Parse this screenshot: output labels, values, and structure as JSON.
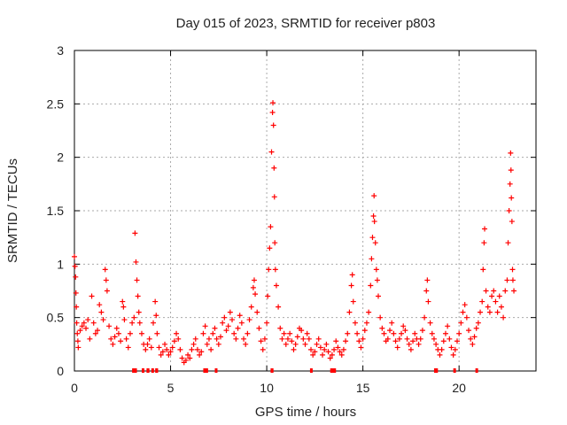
{
  "chart_data": {
    "type": "scatter",
    "title": "Day 015 of 2023, SRMTID for receiver p803",
    "xlabel": "GPS time / hours",
    "ylabel": "SRMTID / TECUs",
    "xlim": [
      0,
      24
    ],
    "ylim": [
      0,
      3
    ],
    "xticks": [
      0,
      5,
      10,
      15,
      20
    ],
    "yticks": [
      0,
      0.5,
      1,
      1.5,
      2,
      2.5,
      3
    ],
    "xtick_labels": [
      "0",
      "5",
      "10",
      "15",
      "20"
    ],
    "ytick_labels": [
      "0",
      "0.5",
      "1",
      "1.5",
      "2",
      "2.5",
      "3"
    ],
    "grid": true,
    "marker": "+",
    "color": "#ff0000",
    "series": [
      {
        "name": "SRMTID",
        "points": [
          [
            0.0,
            1.07
          ],
          [
            0.03,
            0.98
          ],
          [
            0.06,
            0.88
          ],
          [
            0.08,
            0.73
          ],
          [
            0.1,
            0.6
          ],
          [
            0.12,
            0.45
          ],
          [
            0.15,
            0.35
          ],
          [
            0.18,
            0.28
          ],
          [
            0.2,
            0.22
          ],
          [
            0.3,
            0.38
          ],
          [
            0.4,
            0.42
          ],
          [
            0.5,
            0.45
          ],
          [
            0.6,
            0.4
          ],
          [
            0.7,
            0.48
          ],
          [
            0.8,
            0.3
          ],
          [
            0.9,
            0.7
          ],
          [
            1.0,
            0.45
          ],
          [
            1.1,
            0.35
          ],
          [
            1.2,
            0.38
          ],
          [
            1.3,
            0.62
          ],
          [
            1.4,
            0.55
          ],
          [
            1.5,
            0.48
          ],
          [
            1.6,
            0.95
          ],
          [
            1.65,
            0.85
          ],
          [
            1.7,
            0.75
          ],
          [
            1.8,
            0.42
          ],
          [
            1.9,
            0.3
          ],
          [
            2.0,
            0.25
          ],
          [
            2.1,
            0.32
          ],
          [
            2.2,
            0.4
          ],
          [
            2.3,
            0.35
          ],
          [
            2.4,
            0.28
          ],
          [
            2.5,
            0.65
          ],
          [
            2.55,
            0.6
          ],
          [
            2.6,
            0.48
          ],
          [
            2.7,
            0.3
          ],
          [
            2.8,
            0.22
          ],
          [
            2.9,
            0.35
          ],
          [
            3.0,
            0.45
          ],
          [
            3.1,
            0.5
          ],
          [
            3.15,
            1.29
          ],
          [
            3.2,
            1.02
          ],
          [
            3.25,
            0.85
          ],
          [
            3.3,
            0.7
          ],
          [
            3.35,
            0.55
          ],
          [
            3.4,
            0.45
          ],
          [
            3.5,
            0.35
          ],
          [
            3.6,
            0.25
          ],
          [
            3.7,
            0.2
          ],
          [
            3.8,
            0.25
          ],
          [
            3.9,
            0.3
          ],
          [
            4.0,
            0.22
          ],
          [
            4.1,
            0.45
          ],
          [
            4.2,
            0.65
          ],
          [
            4.25,
            0.52
          ],
          [
            4.3,
            0.35
          ],
          [
            4.4,
            0.22
          ],
          [
            4.5,
            0.15
          ],
          [
            4.6,
            0.18
          ],
          [
            4.7,
            0.25
          ],
          [
            4.8,
            0.2
          ],
          [
            4.9,
            0.15
          ],
          [
            5.0,
            0.18
          ],
          [
            5.1,
            0.22
          ],
          [
            5.2,
            0.28
          ],
          [
            5.3,
            0.35
          ],
          [
            5.4,
            0.3
          ],
          [
            5.5,
            0.2
          ],
          [
            5.6,
            0.12
          ],
          [
            5.7,
            0.08
          ],
          [
            5.8,
            0.1
          ],
          [
            5.9,
            0.15
          ],
          [
            6.0,
            0.12
          ],
          [
            6.1,
            0.2
          ],
          [
            6.2,
            0.25
          ],
          [
            6.3,
            0.3
          ],
          [
            6.4,
            0.2
          ],
          [
            6.5,
            0.15
          ],
          [
            6.6,
            0.18
          ],
          [
            6.7,
            0.35
          ],
          [
            6.8,
            0.42
          ],
          [
            6.9,
            0.25
          ],
          [
            7.0,
            0.3
          ],
          [
            7.1,
            0.2
          ],
          [
            7.2,
            0.35
          ],
          [
            7.3,
            0.4
          ],
          [
            7.4,
            0.3
          ],
          [
            7.5,
            0.25
          ],
          [
            7.6,
            0.32
          ],
          [
            7.7,
            0.45
          ],
          [
            7.8,
            0.5
          ],
          [
            7.9,
            0.38
          ],
          [
            8.0,
            0.42
          ],
          [
            8.1,
            0.55
          ],
          [
            8.2,
            0.48
          ],
          [
            8.3,
            0.35
          ],
          [
            8.4,
            0.3
          ],
          [
            8.5,
            0.4
          ],
          [
            8.6,
            0.52
          ],
          [
            8.7,
            0.45
          ],
          [
            8.8,
            0.3
          ],
          [
            8.9,
            0.25
          ],
          [
            9.0,
            0.35
          ],
          [
            9.1,
            0.48
          ],
          [
            9.2,
            0.6
          ],
          [
            9.3,
            0.78
          ],
          [
            9.35,
            0.85
          ],
          [
            9.4,
            0.72
          ],
          [
            9.5,
            0.55
          ],
          [
            9.6,
            0.4
          ],
          [
            9.7,
            0.28
          ],
          [
            9.8,
            0.2
          ],
          [
            9.9,
            0.3
          ],
          [
            10.0,
            0.45
          ],
          [
            10.05,
            0.7
          ],
          [
            10.1,
            0.95
          ],
          [
            10.15,
            1.15
          ],
          [
            10.2,
            1.35
          ],
          [
            10.25,
            2.05
          ],
          [
            10.3,
            2.42
          ],
          [
            10.32,
            2.51
          ],
          [
            10.35,
            2.3
          ],
          [
            10.38,
            1.9
          ],
          [
            10.4,
            1.63
          ],
          [
            10.42,
            1.2
          ],
          [
            10.45,
            0.95
          ],
          [
            10.5,
            0.8
          ],
          [
            10.6,
            0.6
          ],
          [
            10.7,
            0.4
          ],
          [
            10.8,
            0.3
          ],
          [
            10.9,
            0.35
          ],
          [
            11.0,
            0.25
          ],
          [
            11.1,
            0.3
          ],
          [
            11.2,
            0.35
          ],
          [
            11.3,
            0.28
          ],
          [
            11.4,
            0.2
          ],
          [
            11.5,
            0.25
          ],
          [
            11.6,
            0.32
          ],
          [
            11.7,
            0.4
          ],
          [
            11.8,
            0.38
          ],
          [
            11.9,
            0.3
          ],
          [
            12.0,
            0.25
          ],
          [
            12.1,
            0.35
          ],
          [
            12.2,
            0.3
          ],
          [
            12.3,
            0.2
          ],
          [
            12.4,
            0.15
          ],
          [
            12.5,
            0.18
          ],
          [
            12.6,
            0.25
          ],
          [
            12.7,
            0.3
          ],
          [
            12.8,
            0.22
          ],
          [
            12.9,
            0.15
          ],
          [
            13.0,
            0.2
          ],
          [
            13.1,
            0.25
          ],
          [
            13.2,
            0.18
          ],
          [
            13.3,
            0.12
          ],
          [
            13.4,
            0.15
          ],
          [
            13.5,
            0.2
          ],
          [
            13.6,
            0.28
          ],
          [
            13.7,
            0.22
          ],
          [
            13.8,
            0.18
          ],
          [
            13.9,
            0.15
          ],
          [
            14.0,
            0.2
          ],
          [
            14.1,
            0.28
          ],
          [
            14.2,
            0.35
          ],
          [
            14.3,
            0.55
          ],
          [
            14.4,
            0.8
          ],
          [
            14.45,
            0.9
          ],
          [
            14.5,
            0.65
          ],
          [
            14.6,
            0.45
          ],
          [
            14.7,
            0.35
          ],
          [
            14.8,
            0.28
          ],
          [
            14.9,
            0.22
          ],
          [
            15.0,
            0.3
          ],
          [
            15.1,
            0.38
          ],
          [
            15.2,
            0.45
          ],
          [
            15.3,
            0.55
          ],
          [
            15.4,
            0.8
          ],
          [
            15.45,
            1.05
          ],
          [
            15.5,
            1.25
          ],
          [
            15.55,
            1.45
          ],
          [
            15.58,
            1.64
          ],
          [
            15.6,
            1.4
          ],
          [
            15.65,
            1.2
          ],
          [
            15.7,
            0.95
          ],
          [
            15.75,
            0.85
          ],
          [
            15.8,
            0.7
          ],
          [
            15.9,
            0.5
          ],
          [
            16.0,
            0.4
          ],
          [
            16.1,
            0.35
          ],
          [
            16.2,
            0.28
          ],
          [
            16.3,
            0.3
          ],
          [
            16.4,
            0.38
          ],
          [
            16.5,
            0.45
          ],
          [
            16.6,
            0.35
          ],
          [
            16.7,
            0.28
          ],
          [
            16.8,
            0.22
          ],
          [
            16.9,
            0.3
          ],
          [
            17.0,
            0.35
          ],
          [
            17.1,
            0.42
          ],
          [
            17.2,
            0.38
          ],
          [
            17.3,
            0.3
          ],
          [
            17.4,
            0.25
          ],
          [
            17.5,
            0.2
          ],
          [
            17.6,
            0.28
          ],
          [
            17.7,
            0.35
          ],
          [
            17.8,
            0.3
          ],
          [
            17.9,
            0.25
          ],
          [
            18.0,
            0.3
          ],
          [
            18.1,
            0.38
          ],
          [
            18.2,
            0.5
          ],
          [
            18.3,
            0.75
          ],
          [
            18.35,
            0.85
          ],
          [
            18.4,
            0.65
          ],
          [
            18.5,
            0.45
          ],
          [
            18.6,
            0.35
          ],
          [
            18.7,
            0.3
          ],
          [
            18.8,
            0.25
          ],
          [
            18.9,
            0.2
          ],
          [
            19.0,
            0.15
          ],
          [
            19.1,
            0.2
          ],
          [
            19.2,
            0.28
          ],
          [
            19.3,
            0.35
          ],
          [
            19.4,
            0.42
          ],
          [
            19.5,
            0.3
          ],
          [
            19.6,
            0.22
          ],
          [
            19.7,
            0.15
          ],
          [
            19.8,
            0.2
          ],
          [
            19.9,
            0.28
          ],
          [
            20.0,
            0.35
          ],
          [
            20.1,
            0.45
          ],
          [
            20.2,
            0.55
          ],
          [
            20.3,
            0.62
          ],
          [
            20.4,
            0.5
          ],
          [
            20.5,
            0.38
          ],
          [
            20.6,
            0.3
          ],
          [
            20.7,
            0.25
          ],
          [
            20.8,
            0.32
          ],
          [
            20.9,
            0.4
          ],
          [
            21.0,
            0.45
          ],
          [
            21.1,
            0.55
          ],
          [
            21.2,
            0.65
          ],
          [
            21.25,
            0.95
          ],
          [
            21.3,
            1.2
          ],
          [
            21.33,
            1.33
          ],
          [
            21.4,
            0.75
          ],
          [
            21.5,
            0.6
          ],
          [
            21.6,
            0.55
          ],
          [
            21.7,
            0.7
          ],
          [
            21.8,
            0.75
          ],
          [
            21.9,
            0.65
          ],
          [
            22.0,
            0.55
          ],
          [
            22.1,
            0.7
          ],
          [
            22.2,
            0.6
          ],
          [
            22.3,
            0.5
          ],
          [
            22.4,
            0.75
          ],
          [
            22.5,
            0.85
          ],
          [
            22.55,
            1.2
          ],
          [
            22.6,
            1.5
          ],
          [
            22.65,
            1.75
          ],
          [
            22.68,
            2.04
          ],
          [
            22.7,
            1.88
          ],
          [
            22.72,
            1.62
          ],
          [
            22.75,
            1.4
          ],
          [
            22.78,
            0.95
          ],
          [
            22.8,
            0.85
          ],
          [
            22.85,
            0.75
          ]
        ]
      }
    ],
    "gaps_at_zero": [
      [
        3.0,
        3.25
      ],
      [
        3.5,
        3.6
      ],
      [
        3.75,
        3.9
      ],
      [
        4.0,
        4.1
      ],
      [
        4.2,
        4.35
      ],
      [
        6.7,
        6.95
      ],
      [
        7.3,
        7.4
      ],
      [
        10.2,
        10.35
      ],
      [
        12.25,
        12.3
      ],
      [
        13.3,
        13.6
      ],
      [
        18.7,
        18.9
      ],
      [
        19.7,
        19.8
      ],
      [
        20.85,
        20.95
      ]
    ]
  }
}
